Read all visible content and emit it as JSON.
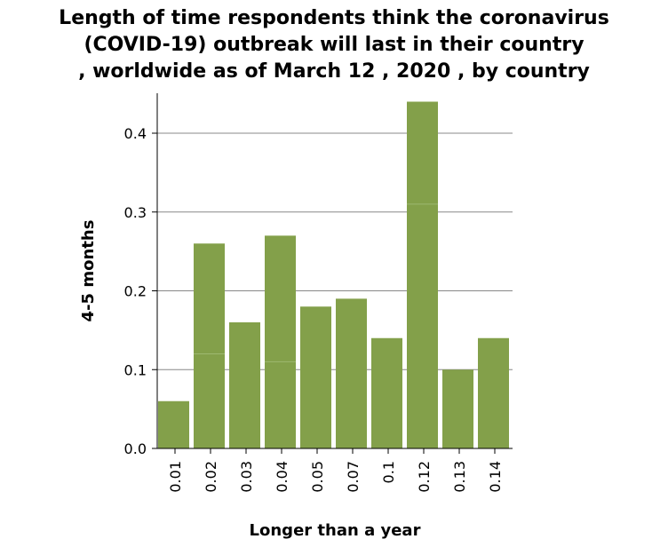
{
  "chart_data": {
    "type": "bar",
    "title_lines": [
      "Length of time respondents think the coronavirus",
      "(COVID-19) outbreak will last in their country",
      ", worldwide as of March 12 , 2020 , by country"
    ],
    "xlabel": "Longer than a year",
    "ylabel": "4-5 months",
    "categories": [
      "0.01",
      "0.02",
      "0.03",
      "0.04",
      "0.05",
      "0.07",
      "0.1",
      "0.12",
      "0.13",
      "0.14"
    ],
    "stacks": [
      [
        0.06
      ],
      [
        0.12,
        0.14
      ],
      [
        0.16
      ],
      [
        0.11,
        0.16
      ],
      [
        0.18
      ],
      [
        0.19
      ],
      [
        0.14
      ],
      [
        0.31,
        0.13
      ],
      [
        0.1
      ],
      [
        0.14
      ]
    ],
    "yticks": [
      "0.0",
      "0.1",
      "0.2",
      "0.3",
      "0.4"
    ],
    "ylim": [
      0,
      0.45
    ],
    "grid": "horizontal",
    "bar_color": "#83a04a",
    "grid_color": "#888888"
  }
}
